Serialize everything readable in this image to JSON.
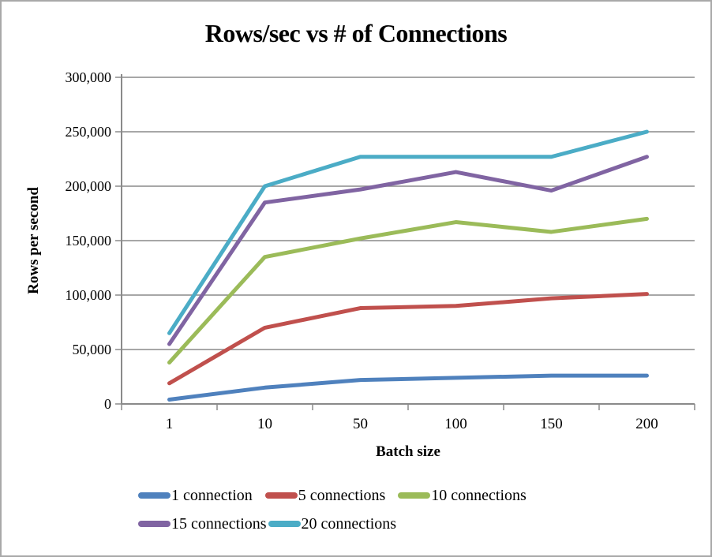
{
  "frame": {
    "background": "#ffffff",
    "border_color": "#a9a9a9"
  },
  "chart_data": {
    "type": "line",
    "title": "Rows/sec vs # of Connections",
    "xlabel": "Batch size",
    "ylabel": "Rows per second",
    "categories": [
      "1",
      "10",
      "50",
      "100",
      "150",
      "200"
    ],
    "series": [
      {
        "name": "1  connection",
        "color": "#4F81BD",
        "values": [
          4000,
          15000,
          22000,
          24000,
          26000,
          26000
        ]
      },
      {
        "name": "5 connections",
        "color": "#C0504D",
        "values": [
          19000,
          70000,
          88000,
          90000,
          97000,
          101000
        ]
      },
      {
        "name": "10 connections",
        "color": "#9BBB59",
        "values": [
          38000,
          135000,
          152000,
          167000,
          158000,
          170000
        ]
      },
      {
        "name": "15 connections",
        "color": "#8064A2",
        "values": [
          55000,
          185000,
          197000,
          213000,
          196000,
          227000
        ]
      },
      {
        "name": "20 connections",
        "color": "#4BACC6",
        "values": [
          65000,
          200000,
          227000,
          227000,
          227000,
          250000
        ]
      }
    ],
    "ylim": [
      0,
      300000
    ],
    "ytick_step": 50000,
    "ytick_labels": [
      "0",
      "50,000",
      "100,000",
      "150,000",
      "200,000",
      "250,000",
      "300,000"
    ],
    "grid": "horizontal",
    "grid_color": "#8a8a8a",
    "axis_color": "#8a8a8a",
    "line_width": 5,
    "legend_position": "bottom-left",
    "legend_rows": [
      [
        0,
        1,
        2
      ],
      [
        3,
        4
      ]
    ]
  }
}
